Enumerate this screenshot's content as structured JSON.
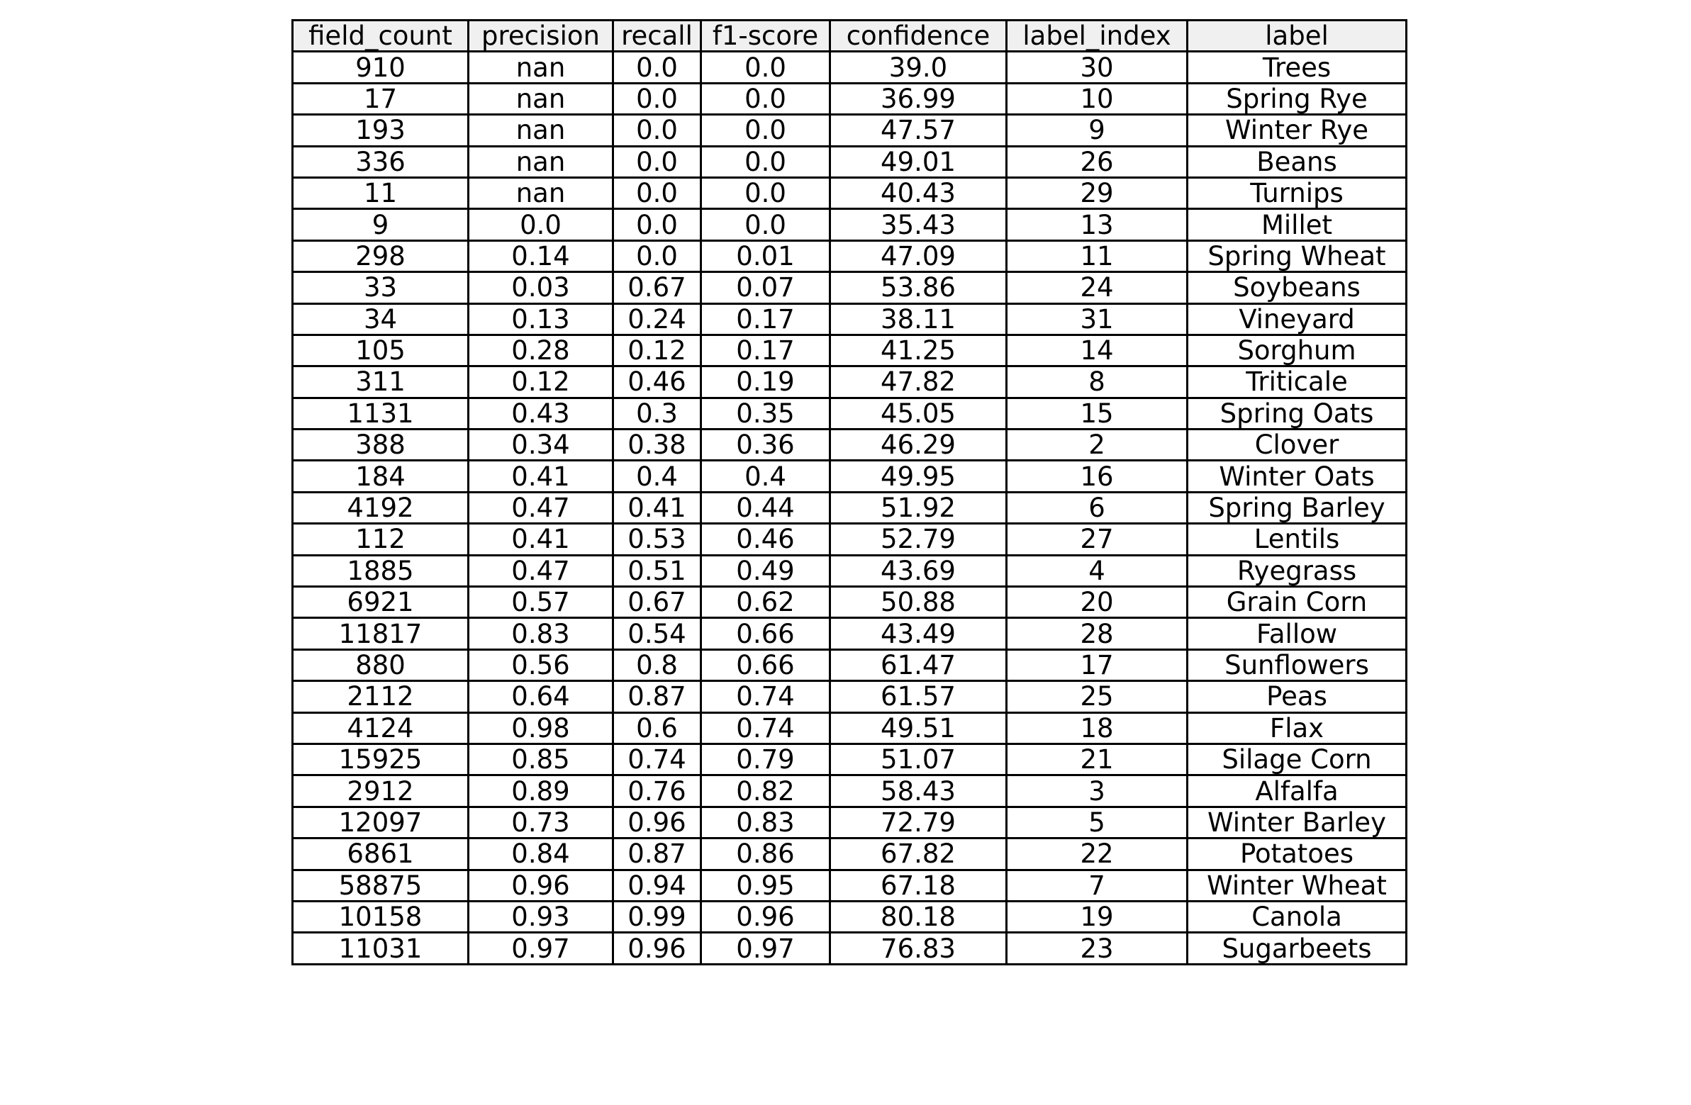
{
  "chart_data": {
    "type": "table",
    "columns": [
      "field_count",
      "precision",
      "recall",
      "f1-score",
      "confidence",
      "label_index",
      "label"
    ],
    "rows": [
      [
        "910",
        "nan",
        "0.0",
        "0.0",
        "39.0",
        "30",
        "Trees"
      ],
      [
        "17",
        "nan",
        "0.0",
        "0.0",
        "36.99",
        "10",
        "Spring Rye"
      ],
      [
        "193",
        "nan",
        "0.0",
        "0.0",
        "47.57",
        "9",
        "Winter Rye"
      ],
      [
        "336",
        "nan",
        "0.0",
        "0.0",
        "49.01",
        "26",
        "Beans"
      ],
      [
        "11",
        "nan",
        "0.0",
        "0.0",
        "40.43",
        "29",
        "Turnips"
      ],
      [
        "9",
        "0.0",
        "0.0",
        "0.0",
        "35.43",
        "13",
        "Millet"
      ],
      [
        "298",
        "0.14",
        "0.0",
        "0.01",
        "47.09",
        "11",
        "Spring Wheat"
      ],
      [
        "33",
        "0.03",
        "0.67",
        "0.07",
        "53.86",
        "24",
        "Soybeans"
      ],
      [
        "34",
        "0.13",
        "0.24",
        "0.17",
        "38.11",
        "31",
        "Vineyard"
      ],
      [
        "105",
        "0.28",
        "0.12",
        "0.17",
        "41.25",
        "14",
        "Sorghum"
      ],
      [
        "311",
        "0.12",
        "0.46",
        "0.19",
        "47.82",
        "8",
        "Triticale"
      ],
      [
        "1131",
        "0.43",
        "0.3",
        "0.35",
        "45.05",
        "15",
        "Spring Oats"
      ],
      [
        "388",
        "0.34",
        "0.38",
        "0.36",
        "46.29",
        "2",
        "Clover"
      ],
      [
        "184",
        "0.41",
        "0.4",
        "0.4",
        "49.95",
        "16",
        "Winter Oats"
      ],
      [
        "4192",
        "0.47",
        "0.41",
        "0.44",
        "51.92",
        "6",
        "Spring Barley"
      ],
      [
        "112",
        "0.41",
        "0.53",
        "0.46",
        "52.79",
        "27",
        "Lentils"
      ],
      [
        "1885",
        "0.47",
        "0.51",
        "0.49",
        "43.69",
        "4",
        "Ryegrass"
      ],
      [
        "6921",
        "0.57",
        "0.67",
        "0.62",
        "50.88",
        "20",
        "Grain Corn"
      ],
      [
        "11817",
        "0.83",
        "0.54",
        "0.66",
        "43.49",
        "28",
        "Fallow"
      ],
      [
        "880",
        "0.56",
        "0.8",
        "0.66",
        "61.47",
        "17",
        "Sunflowers"
      ],
      [
        "2112",
        "0.64",
        "0.87",
        "0.74",
        "61.57",
        "25",
        "Peas"
      ],
      [
        "4124",
        "0.98",
        "0.6",
        "0.74",
        "49.51",
        "18",
        "Flax"
      ],
      [
        "15925",
        "0.85",
        "0.74",
        "0.79",
        "51.07",
        "21",
        "Silage Corn"
      ],
      [
        "2912",
        "0.89",
        "0.76",
        "0.82",
        "58.43",
        "3",
        "Alfalfa"
      ],
      [
        "12097",
        "0.73",
        "0.96",
        "0.83",
        "72.79",
        "5",
        "Winter Barley"
      ],
      [
        "6861",
        "0.84",
        "0.87",
        "0.86",
        "67.82",
        "22",
        "Potatoes"
      ],
      [
        "58875",
        "0.96",
        "0.94",
        "0.95",
        "67.18",
        "7",
        "Winter Wheat"
      ],
      [
        "10158",
        "0.93",
        "0.99",
        "0.96",
        "80.18",
        "19",
        "Canola"
      ],
      [
        "11031",
        "0.97",
        "0.96",
        "0.97",
        "76.83",
        "23",
        "Sugarbeets"
      ]
    ],
    "header_background": "#f0f0f0",
    "border_color": "#000000",
    "text_color": "#000000"
  }
}
